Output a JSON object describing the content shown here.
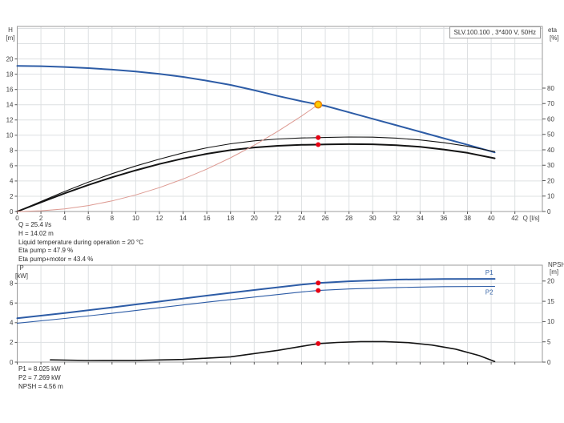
{
  "title_box": {
    "text": "SLV.100.100 , 3*400 V, 50Hz"
  },
  "annotations": {
    "duty": [
      "Q = 25.4 l/s",
      "H = 14.02 m",
      "Liquid temperature during operation = 20 °C",
      "Eta pump = 47.9 %",
      "Eta pump+motor = 43.4 %"
    ],
    "power": [
      "P1 = 8.025 kW",
      "P2 = 7.269 kW",
      "NPSH = 4.56 m"
    ]
  },
  "colors": {
    "curve_blue": "#2d5ca6",
    "curve_black": "#141414",
    "system_curve_red": "#dd9a92",
    "duty_point_fill": "#ffcc00",
    "duty_point_stroke": "#e8820a",
    "red_dot": "#e60012",
    "grid": "#dde0e2",
    "axis": "#9b9b9b",
    "tick_text": "#3f3f3f",
    "blue_label": "#3a67a8"
  },
  "chart_data": [
    {
      "id": "head-efficiency",
      "type": "line",
      "title": "SLV.100.100 , 3*400 V, 50Hz",
      "x_axis": {
        "label": "Q [l/s]",
        "min": 0,
        "max": 44.3,
        "ticks": [
          0,
          2,
          4,
          6,
          8,
          10,
          12,
          14,
          16,
          18,
          20,
          22,
          24,
          26,
          28,
          30,
          32,
          34,
          36,
          38,
          40,
          42
        ],
        "show_tick_labels": true
      },
      "y_left": {
        "title": [
          "H",
          "[m]"
        ],
        "min": 0,
        "max": 24.3,
        "ticks": [
          0,
          2,
          4,
          6,
          8,
          10,
          12,
          14,
          16,
          18,
          20
        ]
      },
      "y_right": {
        "title": [
          "eta",
          "[%]"
        ],
        "min": 0,
        "max": 120,
        "ticks": [
          0,
          10,
          20,
          30,
          40,
          50,
          60,
          70,
          80
        ]
      },
      "series": [
        {
          "name": "pump-head-curve",
          "axis": "left",
          "color": "#2d5ca6",
          "width": 2,
          "interactable": true,
          "x": [
            0,
            2,
            4,
            6,
            8,
            10,
            12,
            14,
            16,
            18,
            20,
            22,
            24,
            25.4,
            26,
            28,
            30,
            32,
            34,
            36,
            38,
            40.3
          ],
          "y": [
            19.1,
            19.05,
            18.95,
            18.8,
            18.6,
            18.35,
            18.05,
            17.65,
            17.15,
            16.6,
            15.9,
            15.15,
            14.45,
            14.02,
            13.85,
            13.0,
            12.15,
            11.3,
            10.45,
            9.6,
            8.75,
            7.75
          ]
        },
        {
          "name": "eta-pump-curve",
          "axis": "right",
          "color": "#141414",
          "width": 1.1,
          "interactable": false,
          "x": [
            0,
            2,
            4,
            6,
            8,
            10,
            12,
            14,
            16,
            18,
            20,
            22,
            24,
            25.4,
            26,
            28,
            30,
            32,
            34,
            36,
            38,
            40.3
          ],
          "y": [
            0,
            6.5,
            13,
            19,
            24.5,
            29.5,
            34,
            38,
            41.3,
            43.9,
            45.8,
            47,
            47.7,
            47.9,
            48,
            48.3,
            48.2,
            47.6,
            46.4,
            44.6,
            42.3,
            38.8
          ]
        },
        {
          "name": "eta-pump-motor-curve",
          "axis": "right",
          "color": "#141414",
          "width": 2,
          "interactable": false,
          "x": [
            0,
            2,
            4,
            6,
            8,
            10,
            12,
            14,
            16,
            18,
            20,
            22,
            24,
            25.4,
            26,
            28,
            30,
            32,
            34,
            36,
            38,
            40.3
          ],
          "y": [
            0,
            5.9,
            11.8,
            17.2,
            22.2,
            26.7,
            30.8,
            34.4,
            37.4,
            39.8,
            41.5,
            42.6,
            43.2,
            43.4,
            43.5,
            43.7,
            43.6,
            43,
            41.9,
            40.2,
            38,
            34.5
          ]
        },
        {
          "name": "system-curve",
          "axis": "left",
          "color": "#dd9a92",
          "width": 1,
          "interactable": false,
          "x": [
            0,
            2,
            4,
            6,
            8,
            10,
            12,
            14,
            16,
            18,
            20,
            22,
            24,
            25.4
          ],
          "y": [
            0,
            0.09,
            0.35,
            0.78,
            1.39,
            2.17,
            3.13,
            4.26,
            5.56,
            7.04,
            8.69,
            10.52,
            12.52,
            14.02
          ]
        }
      ],
      "markers": [
        {
          "name": "duty-point",
          "axis": "left",
          "x": 25.4,
          "y": 14.02,
          "style": "duty",
          "interactable": true
        },
        {
          "name": "eta-pump-point",
          "axis": "right",
          "x": 25.4,
          "y": 47.9,
          "style": "red",
          "interactable": false
        },
        {
          "name": "eta-pump-motor-point",
          "axis": "right",
          "x": 25.4,
          "y": 43.4,
          "style": "red",
          "interactable": false
        }
      ]
    },
    {
      "id": "power-npsh",
      "type": "line",
      "x_axis": {
        "label": "",
        "min": 0,
        "max": 44.3,
        "ticks": [
          0,
          2,
          4,
          6,
          8,
          10,
          12,
          14,
          16,
          18,
          20,
          22,
          24,
          26,
          28,
          30,
          32,
          34,
          36,
          38,
          40,
          42
        ],
        "show_tick_labels": false
      },
      "y_left": {
        "title": [
          "P",
          "[kW]"
        ],
        "min": 0,
        "max": 9.8,
        "ticks": [
          0,
          2,
          4,
          6,
          8
        ]
      },
      "y_right": {
        "title": [
          "NPSH",
          "[m]"
        ],
        "min": 0,
        "max": 23.9,
        "ticks": [
          0,
          5,
          10,
          15,
          20
        ]
      },
      "series": [
        {
          "name": "p1-curve",
          "axis": "left",
          "color": "#2d5ca6",
          "width": 2,
          "label": "P1",
          "label_side": "above",
          "interactable": false,
          "x": [
            0,
            4,
            8,
            12,
            16,
            20,
            24,
            25.4,
            28,
            32,
            36,
            40.3
          ],
          "y": [
            4.45,
            4.98,
            5.55,
            6.15,
            6.75,
            7.32,
            7.86,
            8.025,
            8.2,
            8.37,
            8.44,
            8.45
          ]
        },
        {
          "name": "p2-curve",
          "axis": "left",
          "color": "#2d5ca6",
          "width": 1.1,
          "label": "P2",
          "label_side": "below",
          "interactable": false,
          "x": [
            0,
            4,
            8,
            12,
            16,
            20,
            24,
            25.4,
            28,
            32,
            36,
            40.3
          ],
          "y": [
            3.95,
            4.43,
            4.95,
            5.52,
            6.08,
            6.6,
            7.12,
            7.269,
            7.42,
            7.57,
            7.66,
            7.68
          ]
        },
        {
          "name": "npsh-curve",
          "axis": "right",
          "color": "#141414",
          "width": 1.6,
          "interactable": false,
          "x": [
            2.8,
            6,
            10,
            14,
            18,
            22,
            24,
            25.4,
            27,
            29,
            31,
            33,
            35,
            37,
            39,
            40.3
          ],
          "y": [
            0.55,
            0.4,
            0.42,
            0.65,
            1.3,
            2.9,
            3.9,
            4.56,
            4.85,
            5.05,
            5.05,
            4.8,
            4.2,
            3.2,
            1.6,
            0.15
          ]
        }
      ],
      "markers": [
        {
          "name": "p1-point",
          "axis": "left",
          "x": 25.4,
          "y": 8.025,
          "style": "red",
          "interactable": false
        },
        {
          "name": "p2-point",
          "axis": "left",
          "x": 25.4,
          "y": 7.269,
          "style": "red",
          "interactable": false
        },
        {
          "name": "npsh-point",
          "axis": "right",
          "x": 25.4,
          "y": 4.56,
          "style": "red",
          "interactable": false
        }
      ]
    }
  ]
}
